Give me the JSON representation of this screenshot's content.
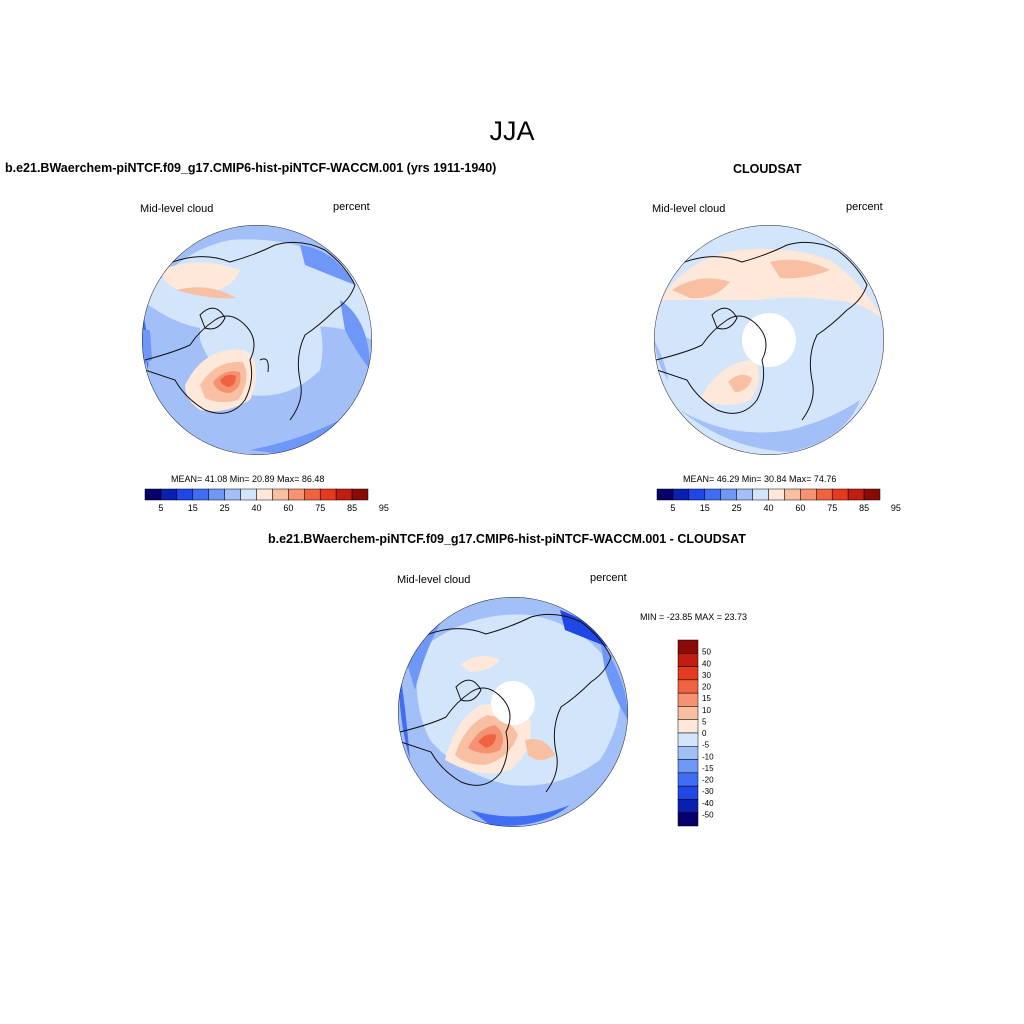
{
  "figure": {
    "title": "JJA"
  },
  "panels": [
    {
      "id": "model",
      "title": "b.e21.BWaerchem-piNTCF.f09_g17.CMIP6-hist-piNTCF-WACCM.001 (yrs 1911-1940)",
      "left_label": "Mid-level cloud",
      "right_label": "percent",
      "stats": "MEAN=  41.08  Min=  20.89  Max=  86.48",
      "mean": 41.08,
      "min": 20.89,
      "max": 86.48
    },
    {
      "id": "obs",
      "title": "CLOUDSAT",
      "left_label": "Mid-level cloud",
      "right_label": "percent",
      "stats": "MEAN=  46.29  Min=  30.84  Max=  74.76",
      "mean": 46.29,
      "min": 30.84,
      "max": 74.76
    },
    {
      "id": "diff",
      "title": "b.e21.BWaerchem-piNTCF.f09_g17.CMIP6-hist-piNTCF-WACCM.001 - CLOUDSAT",
      "left_label": "Mid-level cloud",
      "right_label": "percent",
      "stats": "MIN = -23.85 MAX =  23.73",
      "min": -23.85,
      "max": 23.73
    }
  ],
  "colorbar_abs": {
    "colors": [
      "#08006a",
      "#0a1fb0",
      "#1e47e6",
      "#3f6ef5",
      "#6f97f7",
      "#a3bff8",
      "#d2e5fb",
      "#fde8da",
      "#f9bfa3",
      "#f59272",
      "#ef6340",
      "#e63a1e",
      "#c11d10",
      "#8b0a06"
    ],
    "tick_labels": [
      "5",
      "15",
      "25",
      "40",
      "60",
      "75",
      "85",
      "95"
    ]
  },
  "colorbar_diff": {
    "colors": [
      "#8b0a06",
      "#c11d10",
      "#e63a1e",
      "#ef6340",
      "#f59272",
      "#f9bfa3",
      "#fde8da",
      "#d2e5fb",
      "#a3bff8",
      "#6f97f7",
      "#3f6ef5",
      "#1e47e6",
      "#0a1fb0",
      "#08006a"
    ],
    "tick_labels": [
      "50",
      "40",
      "30",
      "20",
      "15",
      "10",
      "5",
      "0",
      "-5",
      "-10",
      "-15",
      "-20",
      "-30",
      "-40",
      "-50"
    ]
  },
  "colors": {
    "land_outline": "#111111",
    "missing": "#ffffff"
  }
}
